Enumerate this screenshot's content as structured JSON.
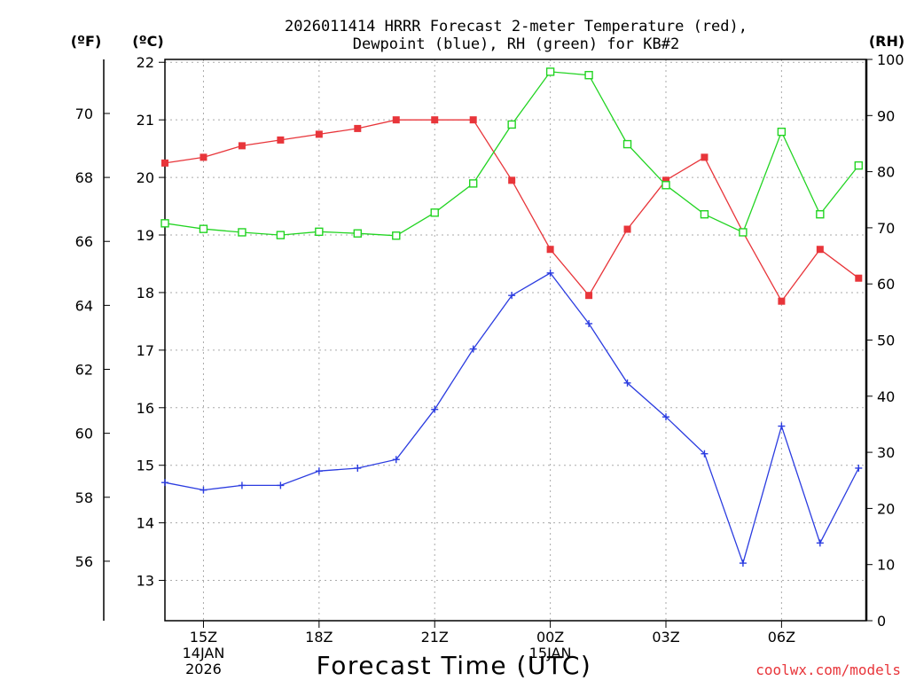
{
  "chart_data": {
    "type": "line",
    "title_line1": "2026011414 HRRR Forecast 2-meter Temperature (red),",
    "title_line2": "Dewpoint (blue), RH (green) for KB#2",
    "xlabel": "Forecast Time (UTC)",
    "watermark": "coolwx.com/models",
    "left_outer_label": "(ºF)",
    "left_inner_label": "(ºC)",
    "right_label": "(RH)",
    "x_hours": [
      14,
      15,
      16,
      17,
      18,
      19,
      20,
      21,
      22,
      23,
      24,
      25,
      26,
      27,
      28,
      29,
      30,
      31,
      32
    ],
    "x_range": [
      14,
      32.2
    ],
    "x_ticks": [
      {
        "h": 15,
        "label": "15Z",
        "sub1": "14JAN",
        "sub2": "2026"
      },
      {
        "h": 18,
        "label": "18Z",
        "sub1": "",
        "sub2": ""
      },
      {
        "h": 21,
        "label": "21Z",
        "sub1": "",
        "sub2": ""
      },
      {
        "h": 24,
        "label": "00Z",
        "sub1": "15JAN",
        "sub2": ""
      },
      {
        "h": 27,
        "label": "03Z",
        "sub1": "",
        "sub2": ""
      },
      {
        "h": 30,
        "label": "06Z",
        "sub1": "",
        "sub2": ""
      }
    ],
    "c_range": [
      12.3,
      22.05
    ],
    "c_ticks": [
      "13",
      "14",
      "15",
      "16",
      "17",
      "18",
      "19",
      "20",
      "21",
      "22"
    ],
    "f_ticks": [
      "56",
      "58",
      "60",
      "62",
      "64",
      "66",
      "68",
      "70"
    ],
    "rh_range": [
      0,
      100
    ],
    "rh_ticks": [
      "0",
      "10",
      "20",
      "30",
      "40",
      "50",
      "60",
      "70",
      "80",
      "90",
      "100"
    ],
    "series": [
      {
        "name": "Temperature",
        "axis": "C",
        "color": "#e8353a",
        "marker": "filled-square",
        "values": [
          20.25,
          20.35,
          20.55,
          20.65,
          20.75,
          20.85,
          21.0,
          21.0,
          21.0,
          19.95,
          18.75,
          17.95,
          19.1,
          19.95,
          20.35,
          19.05,
          17.85,
          18.75,
          18.25
        ]
      },
      {
        "name": "Dewpoint",
        "axis": "C",
        "color": "#2b3ce0",
        "marker": "plus",
        "values": [
          14.7,
          14.57,
          14.65,
          14.65,
          14.9,
          14.95,
          15.1,
          15.97,
          17.02,
          17.95,
          18.34,
          17.46,
          16.43,
          15.84,
          15.2,
          13.3,
          15.68,
          13.65,
          14.95
        ]
      },
      {
        "name": "RH",
        "axis": "RH",
        "color": "#22d422",
        "marker": "open-square",
        "values": [
          70.8,
          69.8,
          69.2,
          68.7,
          69.3,
          69.0,
          68.6,
          72.7,
          77.9,
          88.4,
          97.8,
          97.2,
          84.9,
          77.6,
          72.4,
          69.2,
          87.1,
          72.4,
          81.1
        ]
      }
    ]
  }
}
